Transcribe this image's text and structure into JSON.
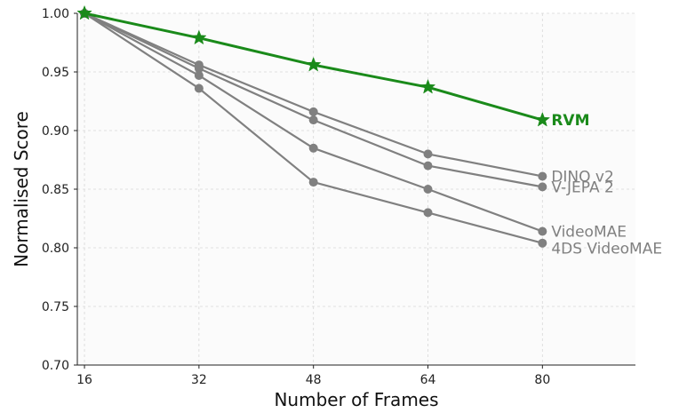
{
  "chart_data": {
    "type": "line",
    "xlabel": "Number of Frames",
    "ylabel": "Normalised Score",
    "x": [
      16,
      32,
      48,
      64,
      80
    ],
    "xlim": [
      15,
      93
    ],
    "ylim": [
      0.7,
      1.0
    ],
    "x_ticks": [
      "16",
      "32",
      "48",
      "64",
      "80"
    ],
    "y_ticks": [
      "0.70",
      "0.75",
      "0.80",
      "0.85",
      "0.90",
      "0.95",
      "1.00"
    ],
    "grid": true,
    "legend": "inline labels at line ends",
    "series": [
      {
        "name": "RVM",
        "values": [
          1.0,
          0.979,
          0.956,
          0.937,
          0.909
        ],
        "color": "#1a8a1a",
        "marker": "star",
        "bold": true
      },
      {
        "name": "DINO v2",
        "values": [
          1.0,
          0.956,
          0.916,
          0.88,
          0.861
        ],
        "color": "#808080",
        "marker": "circle",
        "bold": false
      },
      {
        "name": "V-JEPA 2",
        "values": [
          1.0,
          0.953,
          0.909,
          0.87,
          0.852
        ],
        "color": "#808080",
        "marker": "circle",
        "bold": false
      },
      {
        "name": "VideoMAE",
        "values": [
          1.0,
          0.947,
          0.885,
          0.85,
          0.814
        ],
        "color": "#808080",
        "marker": "circle",
        "bold": false
      },
      {
        "name": "4DS VideoMAE",
        "values": [
          1.0,
          0.936,
          0.856,
          0.83,
          0.804
        ],
        "color": "#808080",
        "marker": "circle",
        "bold": false
      }
    ]
  }
}
